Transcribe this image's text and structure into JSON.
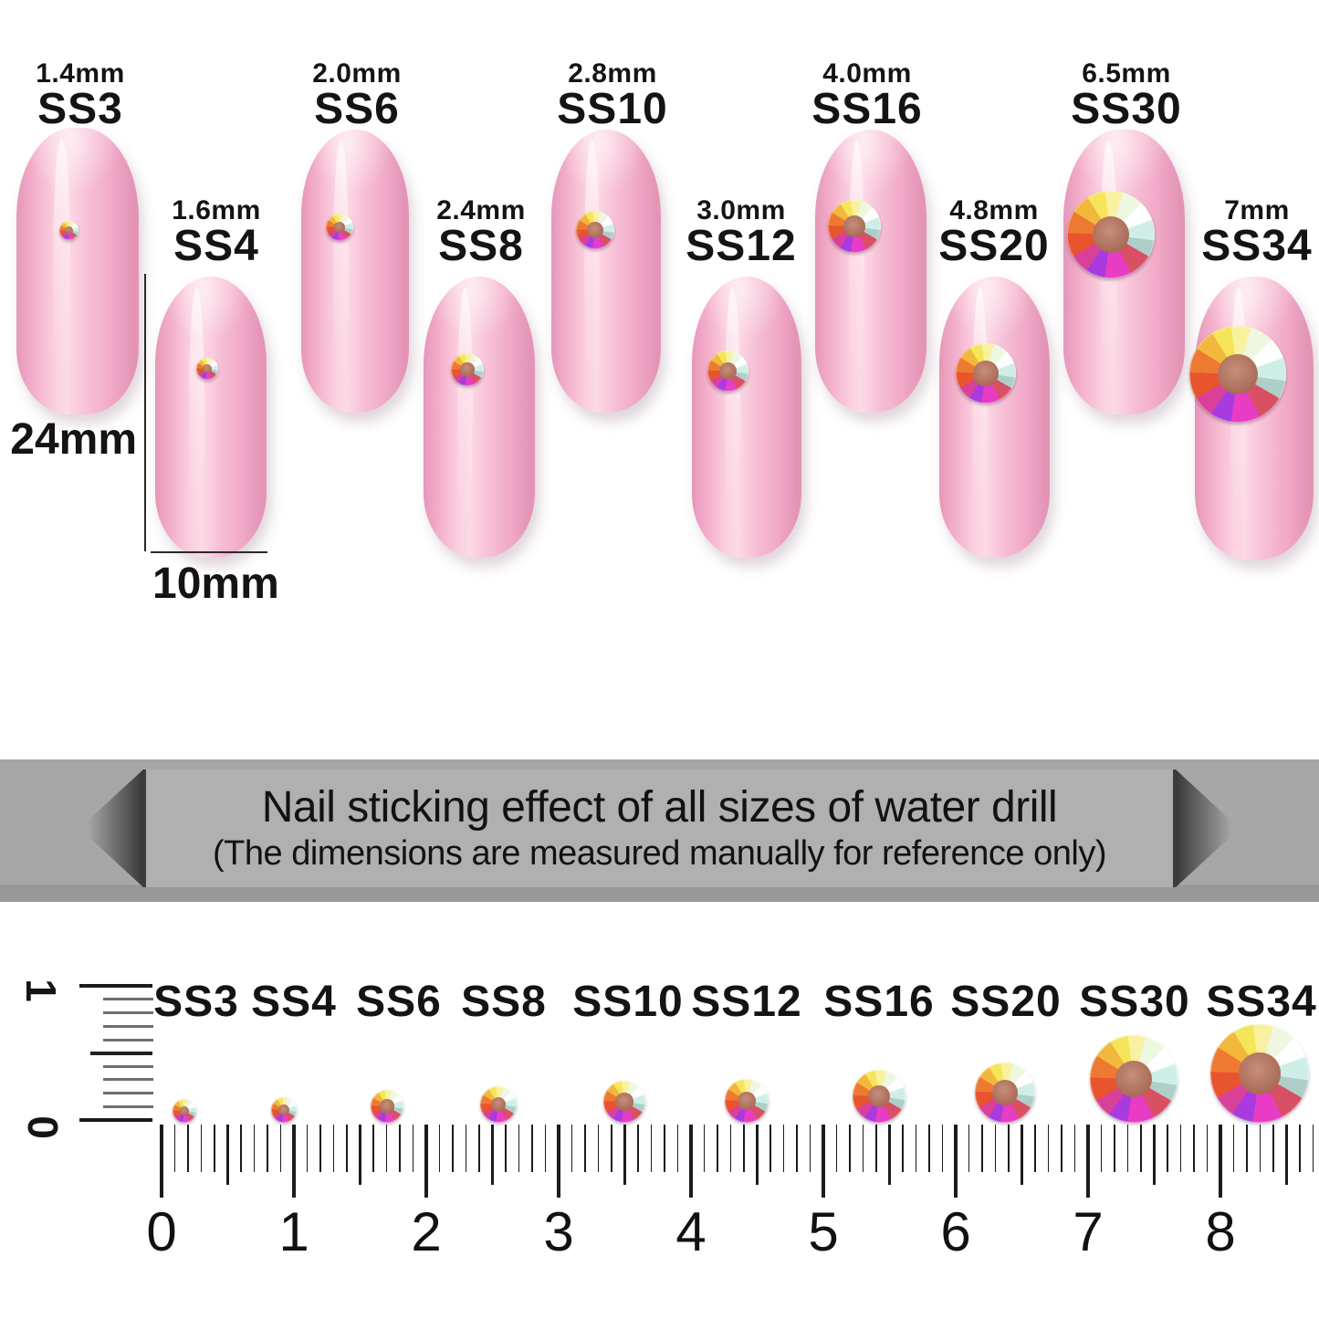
{
  "size_chart": {
    "height_label": "24mm",
    "width_label": "10mm",
    "nails": [
      {
        "mm": "1.4mm",
        "ss": "SS3"
      },
      {
        "mm": "1.6mm",
        "ss": "SS4"
      },
      {
        "mm": "2.0mm",
        "ss": "SS6"
      },
      {
        "mm": "2.4mm",
        "ss": "SS8"
      },
      {
        "mm": "2.8mm",
        "ss": "SS10"
      },
      {
        "mm": "3.0mm",
        "ss": "SS12"
      },
      {
        "mm": "4.0mm",
        "ss": "SS16"
      },
      {
        "mm": "4.8mm",
        "ss": "SS20"
      },
      {
        "mm": "6.5mm",
        "ss": "SS30"
      },
      {
        "mm": "7mm",
        "ss": "SS34"
      }
    ]
  },
  "banner": {
    "title": "Nail sticking effect of all sizes of water drill",
    "subtitle": "(The dimensions are measured manually for reference only)"
  },
  "ruler": {
    "size_labels": [
      "SS3",
      "SS4",
      "SS6",
      "SS8",
      "SS10",
      "SS12",
      "SS16",
      "SS20",
      "SS30",
      "SS34"
    ],
    "numbers": [
      "0",
      "1",
      "2",
      "3",
      "4",
      "5",
      "6",
      "7",
      "8"
    ],
    "vertical_numbers": [
      "1",
      "0"
    ]
  },
  "colors": {
    "nail_pink": "#f6b9d0",
    "banner_band": "#a7a7a7",
    "banner_ribbon": "#b0b0b0",
    "gem_center": "#aa6b58",
    "text": "#141414"
  }
}
